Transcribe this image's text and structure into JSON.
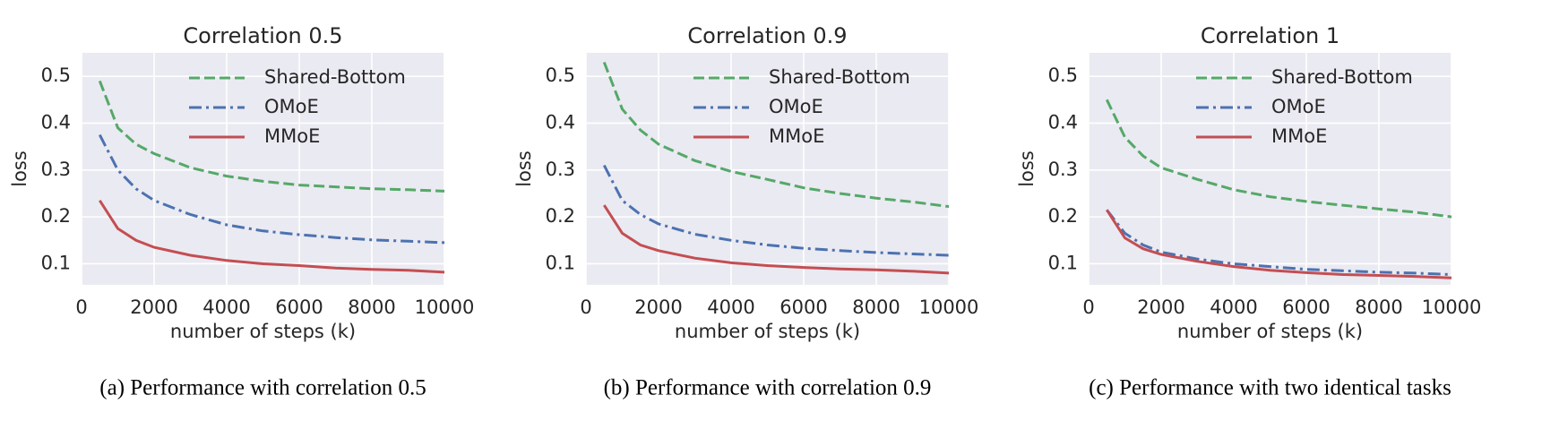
{
  "chart_data": [
    {
      "type": "line",
      "title": "Correlation 0.5",
      "x_label": "number of steps (k)",
      "y_label": "loss",
      "caption": "(a) Performance with correlation 0.5",
      "x": [
        500,
        1000,
        1500,
        2000,
        3000,
        4000,
        5000,
        6000,
        7000,
        8000,
        9000,
        10000
      ],
      "series": [
        {
          "name": "Shared-Bottom",
          "color": "#55a868",
          "linestyle": "dashed",
          "values": [
            0.49,
            0.39,
            0.355,
            0.335,
            0.305,
            0.287,
            0.276,
            0.268,
            0.264,
            0.26,
            0.258,
            0.255
          ]
        },
        {
          "name": "OMoE",
          "color": "#4c72b0",
          "linestyle": "dashdot",
          "values": [
            0.375,
            0.3,
            0.26,
            0.235,
            0.205,
            0.183,
            0.17,
            0.162,
            0.156,
            0.151,
            0.148,
            0.145
          ]
        },
        {
          "name": "MMoE",
          "color": "#c44e52",
          "linestyle": "solid",
          "values": [
            0.235,
            0.175,
            0.15,
            0.135,
            0.118,
            0.107,
            0.1,
            0.096,
            0.091,
            0.088,
            0.086,
            0.082
          ]
        }
      ],
      "xlim": [
        0,
        10000
      ],
      "xticks": [
        0,
        2000,
        4000,
        6000,
        8000,
        10000
      ],
      "ylim": [
        0.055,
        0.55
      ],
      "yticks": [
        0.1,
        0.2,
        0.3,
        0.4,
        0.5
      ],
      "grid": true,
      "legend": "upper right"
    },
    {
      "type": "line",
      "title": "Correlation 0.9",
      "x_label": "number of steps (k)",
      "y_label": "loss",
      "caption": "(b) Performance with correlation 0.9",
      "x": [
        500,
        1000,
        1500,
        2000,
        3000,
        4000,
        5000,
        6000,
        7000,
        8000,
        9000,
        10000
      ],
      "series": [
        {
          "name": "Shared-Bottom",
          "color": "#55a868",
          "linestyle": "dashed",
          "values": [
            0.53,
            0.43,
            0.385,
            0.355,
            0.32,
            0.297,
            0.28,
            0.262,
            0.25,
            0.24,
            0.232,
            0.222
          ]
        },
        {
          "name": "OMoE",
          "color": "#4c72b0",
          "linestyle": "dashdot",
          "values": [
            0.31,
            0.235,
            0.205,
            0.185,
            0.163,
            0.15,
            0.14,
            0.133,
            0.128,
            0.124,
            0.121,
            0.118
          ]
        },
        {
          "name": "MMoE",
          "color": "#c44e52",
          "linestyle": "solid",
          "values": [
            0.225,
            0.165,
            0.14,
            0.128,
            0.112,
            0.102,
            0.096,
            0.092,
            0.089,
            0.087,
            0.084,
            0.08
          ]
        }
      ],
      "xlim": [
        0,
        10000
      ],
      "xticks": [
        0,
        2000,
        4000,
        6000,
        8000,
        10000
      ],
      "ylim": [
        0.055,
        0.55
      ],
      "yticks": [
        0.1,
        0.2,
        0.3,
        0.4,
        0.5
      ],
      "grid": true,
      "legend": "upper right"
    },
    {
      "type": "line",
      "title": "Correlation 1",
      "x_label": "number of steps (k)",
      "y_label": "loss",
      "caption": "(c) Performance with two identical tasks",
      "x": [
        500,
        1000,
        1500,
        2000,
        3000,
        4000,
        5000,
        6000,
        7000,
        8000,
        9000,
        10000
      ],
      "series": [
        {
          "name": "Shared-Bottom",
          "color": "#55a868",
          "linestyle": "dashed",
          "values": [
            0.45,
            0.37,
            0.33,
            0.305,
            0.28,
            0.258,
            0.243,
            0.233,
            0.225,
            0.217,
            0.21,
            0.2
          ]
        },
        {
          "name": "OMoE",
          "color": "#4c72b0",
          "linestyle": "dashdot",
          "values": [
            0.215,
            0.165,
            0.14,
            0.125,
            0.11,
            0.1,
            0.094,
            0.088,
            0.085,
            0.082,
            0.08,
            0.077
          ]
        },
        {
          "name": "MMoE",
          "color": "#c44e52",
          "linestyle": "solid",
          "values": [
            0.215,
            0.155,
            0.132,
            0.12,
            0.105,
            0.094,
            0.086,
            0.081,
            0.077,
            0.075,
            0.073,
            0.07
          ]
        }
      ],
      "xlim": [
        0,
        10000
      ],
      "xticks": [
        0,
        2000,
        4000,
        6000,
        8000,
        10000
      ],
      "ylim": [
        0.055,
        0.55
      ],
      "yticks": [
        0.1,
        0.2,
        0.3,
        0.4,
        0.5
      ],
      "grid": true,
      "legend": "upper right"
    }
  ]
}
